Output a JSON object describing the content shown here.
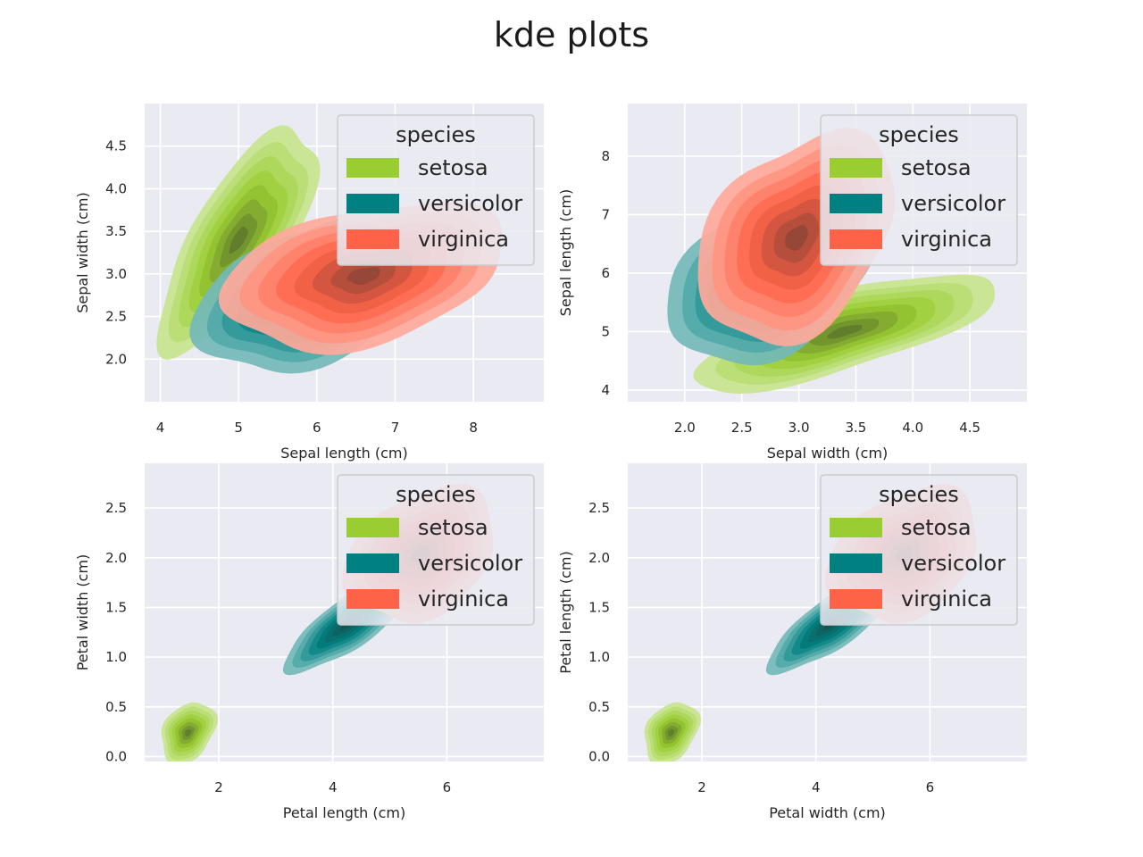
{
  "title": "kde plots",
  "colors": {
    "setosa": "#9acd32",
    "versicolor": "#008080",
    "virginica": "#ff6347",
    "background": "#eaeaf2",
    "grid": "#ffffff"
  },
  "chart_data": [
    {
      "type": "kde",
      "xlabel": "Sepal length (cm)",
      "ylabel": "Sepal width (cm)",
      "xlim": [
        3.8,
        8.9
      ],
      "ylim": [
        1.5,
        5.0
      ],
      "xticks": [
        4,
        5,
        6,
        7,
        8
      ],
      "xtick_labels": [
        "4",
        "5",
        "6",
        "7",
        "8"
      ],
      "yticks": [
        2.0,
        2.5,
        3.0,
        3.5,
        4.0,
        4.5
      ],
      "ytick_labels": [
        "2.0",
        "2.5",
        "3.0",
        "3.5",
        "4.0",
        "4.5"
      ],
      "legend": {
        "title": "species",
        "position": "upper right",
        "entries": [
          "setosa",
          "versicolor",
          "virginica"
        ]
      },
      "series": [
        {
          "name": "setosa",
          "center": [
            5.0,
            3.4
          ],
          "sd": [
            0.42,
            0.55
          ],
          "rho": 0.72
        },
        {
          "name": "versicolor",
          "center": [
            5.9,
            2.75
          ],
          "sd": [
            0.6,
            0.38
          ],
          "rho": 0.4
        },
        {
          "name": "virginica",
          "center": [
            6.6,
            2.98
          ],
          "sd": [
            0.75,
            0.36
          ],
          "rho": 0.35
        }
      ]
    },
    {
      "type": "kde",
      "xlabel": "Sepal width (cm)",
      "ylabel": "Sepal length (cm)",
      "xlim": [
        1.5,
        5.0
      ],
      "ylim": [
        3.8,
        8.9
      ],
      "xticks": [
        2.0,
        2.5,
        3.0,
        3.5,
        4.0,
        4.5
      ],
      "xtick_labels": [
        "2.0",
        "2.5",
        "3.0",
        "3.5",
        "4.0",
        "4.5"
      ],
      "yticks": [
        4,
        5,
        6,
        7,
        8
      ],
      "ytick_labels": [
        "4",
        "5",
        "6",
        "7",
        "8"
      ],
      "legend": {
        "title": "species",
        "position": "upper right",
        "entries": [
          "setosa",
          "versicolor",
          "virginica"
        ]
      },
      "series": [
        {
          "name": "setosa",
          "center": [
            3.4,
            5.0
          ],
          "sd": [
            0.55,
            0.42
          ],
          "rho": 0.72
        },
        {
          "name": "versicolor",
          "center": [
            2.75,
            5.9
          ],
          "sd": [
            0.38,
            0.6
          ],
          "rho": 0.4
        },
        {
          "name": "virginica",
          "center": [
            2.98,
            6.6
          ],
          "sd": [
            0.36,
            0.75
          ],
          "rho": 0.35
        }
      ]
    },
    {
      "type": "kde",
      "xlabel": "Petal length (cm)",
      "ylabel": "Petal width (cm)",
      "xlim": [
        0.7,
        7.7
      ],
      "ylim": [
        -0.05,
        2.95
      ],
      "xticks": [
        2,
        4,
        6
      ],
      "xtick_labels": [
        "2",
        "4",
        "6"
      ],
      "yticks": [
        0.0,
        0.5,
        1.0,
        1.5,
        2.0,
        2.5
      ],
      "ytick_labels": [
        "0.0",
        "0.5",
        "1.0",
        "1.5",
        "2.0",
        "2.5"
      ],
      "legend": {
        "title": "species",
        "position": "upper right",
        "entries": [
          "setosa",
          "versicolor",
          "virginica"
        ]
      },
      "series": [
        {
          "name": "setosa",
          "center": [
            1.46,
            0.24
          ],
          "sd": [
            0.2,
            0.13
          ],
          "rho": 0.3
        },
        {
          "name": "versicolor",
          "center": [
            4.26,
            1.33
          ],
          "sd": [
            0.45,
            0.2
          ],
          "rho": 0.78
        },
        {
          "name": "virginica",
          "center": [
            5.55,
            2.03
          ],
          "sd": [
            0.55,
            0.28
          ],
          "rho": 0.3
        }
      ]
    },
    {
      "type": "kde",
      "xlabel": "Petal width (cm)",
      "ylabel": "Petal length (cm)",
      "xlim": [
        0.7,
        7.7
      ],
      "ylim": [
        -0.05,
        2.95
      ],
      "xticks": [
        2,
        4,
        6
      ],
      "xtick_labels": [
        "2",
        "4",
        "6"
      ],
      "yticks": [
        0.0,
        0.5,
        1.0,
        1.5,
        2.0,
        2.5
      ],
      "ytick_labels": [
        "0.0",
        "0.5",
        "1.0",
        "1.5",
        "2.0",
        "2.5"
      ],
      "legend": {
        "title": "species",
        "position": "upper right",
        "entries": [
          "setosa",
          "versicolor",
          "virginica"
        ]
      },
      "series": [
        {
          "name": "setosa",
          "center": [
            1.46,
            0.24
          ],
          "sd": [
            0.2,
            0.13
          ],
          "rho": 0.3
        },
        {
          "name": "versicolor",
          "center": [
            4.26,
            1.33
          ],
          "sd": [
            0.45,
            0.2
          ],
          "rho": 0.78
        },
        {
          "name": "virginica",
          "center": [
            5.55,
            2.03
          ],
          "sd": [
            0.55,
            0.28
          ],
          "rho": 0.3
        }
      ]
    }
  ]
}
